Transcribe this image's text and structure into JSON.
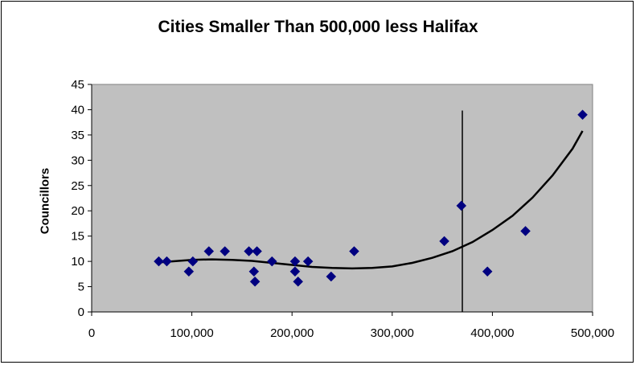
{
  "chart_data": {
    "type": "scatter",
    "title": "Cities Smaller Than 500,000 less Halifax",
    "xlabel": "",
    "ylabel": "Councillors",
    "xlim": [
      0,
      500000
    ],
    "ylim": [
      0,
      45
    ],
    "x_ticks": [
      "0",
      "100,000",
      "200,000",
      "300,000",
      "400,000",
      "500,000"
    ],
    "y_ticks": [
      "0",
      "5",
      "10",
      "15",
      "20",
      "25",
      "30",
      "35",
      "40",
      "45"
    ],
    "grid": false,
    "plot_background": "#c0c0c0",
    "marker_color": "#000080",
    "trendline_color": "#000000",
    "points": [
      {
        "x": 67000,
        "y": 10
      },
      {
        "x": 75000,
        "y": 10
      },
      {
        "x": 97000,
        "y": 8
      },
      {
        "x": 101000,
        "y": 10
      },
      {
        "x": 117000,
        "y": 12
      },
      {
        "x": 133000,
        "y": 12
      },
      {
        "x": 157000,
        "y": 12
      },
      {
        "x": 162000,
        "y": 8
      },
      {
        "x": 163000,
        "y": 6
      },
      {
        "x": 165000,
        "y": 12
      },
      {
        "x": 180000,
        "y": 10
      },
      {
        "x": 203000,
        "y": 10
      },
      {
        "x": 203000,
        "y": 8
      },
      {
        "x": 206000,
        "y": 6
      },
      {
        "x": 216000,
        "y": 10
      },
      {
        "x": 239000,
        "y": 7
      },
      {
        "x": 262000,
        "y": 12
      },
      {
        "x": 352000,
        "y": 14
      },
      {
        "x": 369000,
        "y": 21
      },
      {
        "x": 395000,
        "y": 8
      },
      {
        "x": 433000,
        "y": 16
      },
      {
        "x": 490000,
        "y": 39
      }
    ],
    "trendline": {
      "x": [
        67000,
        80000,
        100000,
        120000,
        140000,
        160000,
        180000,
        200000,
        220000,
        240000,
        260000,
        280000,
        300000,
        320000,
        340000,
        360000,
        380000,
        400000,
        420000,
        440000,
        460000,
        480000,
        490000
      ],
      "y": [
        9.8,
        10.0,
        10.3,
        10.4,
        10.3,
        10.1,
        9.7,
        9.3,
        8.9,
        8.7,
        8.6,
        8.7,
        9.0,
        9.7,
        10.7,
        12.0,
        13.8,
        16.2,
        19.0,
        22.6,
        27.0,
        32.3,
        35.8
      ]
    },
    "vertical_line_x": 370000
  }
}
